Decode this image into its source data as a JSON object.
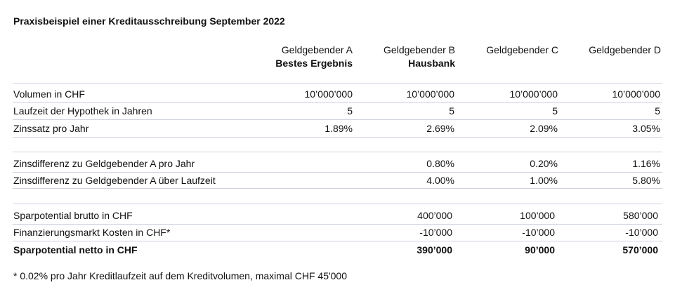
{
  "title": "Praxisbeispiel einer Kreditausschreibung September 2022",
  "columns": [
    {
      "name": "Geldgebender A",
      "sub": "Bestes Ergebnis"
    },
    {
      "name": "Geldgebender B",
      "sub": "Hausbank"
    },
    {
      "name": "Geldgebender C",
      "sub": ""
    },
    {
      "name": "Geldgebender D",
      "sub": ""
    }
  ],
  "groups": [
    {
      "rows": [
        {
          "label": "Volumen in CHF",
          "values": [
            "10’000’000",
            "10’000’000",
            "10’000’000",
            "10’000’000"
          ],
          "bold": false
        },
        {
          "label": "Laufzeit der Hypothek in Jahren",
          "values": [
            "5",
            "5",
            "5",
            "5"
          ],
          "bold": false
        },
        {
          "label": "Zinssatz pro Jahr",
          "values": [
            "1.89%",
            "2.69%",
            "2.09%",
            "3.05%"
          ],
          "bold": false
        }
      ]
    },
    {
      "rows": [
        {
          "label": "Zinsdifferenz zu Geldgebender A pro Jahr",
          "values": [
            "",
            "0.80%",
            "0.20%",
            "1.16%"
          ],
          "bold": false
        },
        {
          "label": "Zinsdifferenz zu Geldgebender A über Laufzeit",
          "values": [
            "",
            "4.00%",
            "1.00%",
            "5.80%"
          ],
          "bold": false
        }
      ]
    },
    {
      "rows": [
        {
          "label": "Sparpotential brutto in CHF",
          "values": [
            "",
            "400’000",
            "100’000",
            "580’000"
          ],
          "bold": false
        },
        {
          "label": "Finanzierungsmarkt Kosten in CHF*",
          "values": [
            "",
            "-10’000",
            "-10’000",
            "-10’000"
          ],
          "bold": false
        },
        {
          "label": "Sparpotential netto in CHF",
          "values": [
            "",
            "390’000",
            "90’000",
            "570’000"
          ],
          "bold": true
        }
      ]
    }
  ],
  "footnote": "* 0.02% pro Jahr Kreditlaufzeit auf dem Kreditvolumen, maximal CHF 45'000"
}
